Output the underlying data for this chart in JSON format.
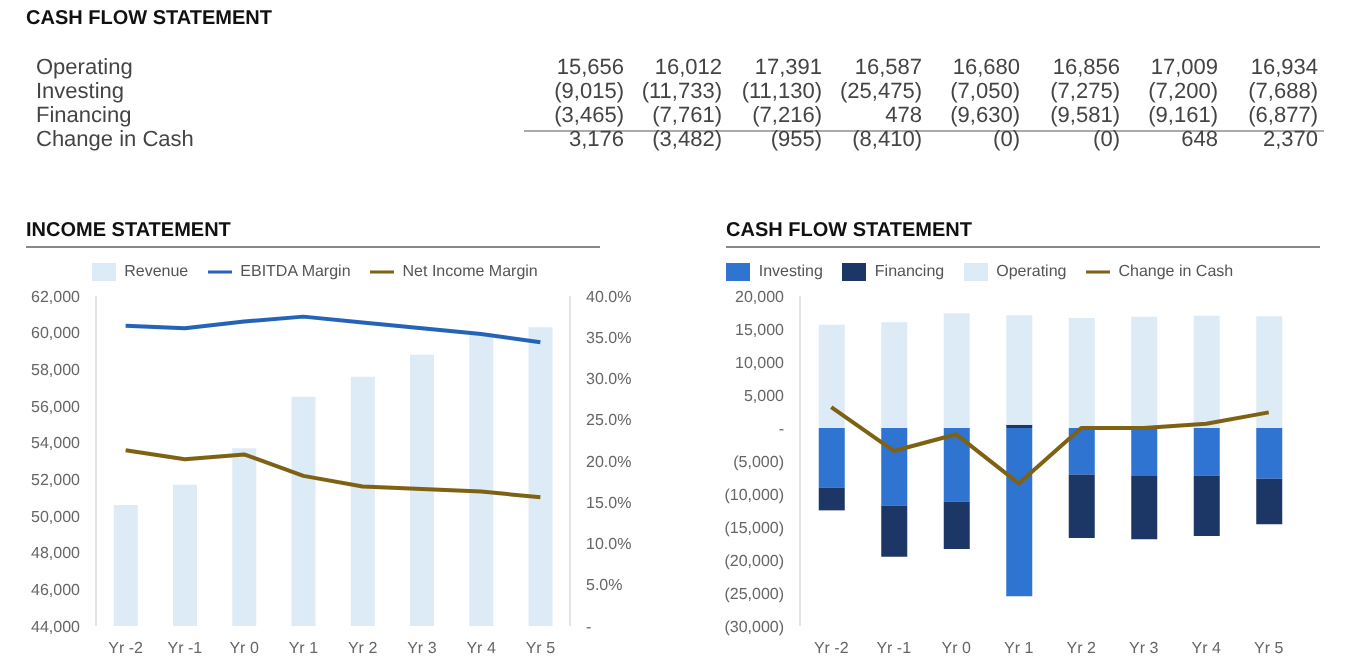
{
  "chart_data": [
    {
      "type": "other",
      "title": "CASH FLOW STATEMENT",
      "annotations": [
        "Operating",
        "15,656",
        "16,012",
        "17,391",
        "16,587",
        "16,680",
        "16,856",
        "17,009",
        "16,934",
        "Investing",
        "(9,015)",
        "(11,733)",
        "(11,130)",
        "(25,475)",
        "(7,050)",
        "(7,275)",
        "(7,200)",
        "(7,688)",
        "Financing",
        "(3,465)",
        "(7,761)",
        "(7,216)",
        "478",
        "(9,630)",
        "(9,581)",
        "(9,161)",
        "(6,877)",
        "Change in Cash",
        "3,176",
        "(3,482)",
        "(955)",
        "(8,410)",
        "(0)",
        "(0)",
        "648",
        "2,370"
      ]
    },
    {
      "type": "bar",
      "title": "INCOME STATEMENT",
      "categories": [
        "Yr -2",
        "Yr -1",
        "Yr 0",
        "Yr 1",
        "Yr 2",
        "Yr 3",
        "Yr 4",
        "Yr 5"
      ],
      "series": [
        {
          "name": "Revenue",
          "type": "bar",
          "color": "#ddebf7",
          "values": [
            50600,
            51700,
            53700,
            56500,
            57600,
            58800,
            59900,
            60300
          ]
        },
        {
          "name": "EBITDA Margin",
          "type": "line",
          "axis": "y2",
          "color": "#2563b8",
          "values": [
            36.4,
            36.1,
            36.9,
            37.5,
            36.8,
            36.1,
            35.4,
            34.4
          ]
        },
        {
          "name": "Net Income Margin",
          "type": "line",
          "axis": "y2",
          "color": "#7f6114",
          "values": [
            21.3,
            20.2,
            20.8,
            18.2,
            16.9,
            16.6,
            16.3,
            15.6
          ]
        }
      ],
      "ylim": [
        44000,
        62000
      ],
      "yticks": [
        {
          "value": 44000,
          "label": "44,000"
        },
        {
          "value": 46000,
          "label": "46,000"
        },
        {
          "value": 48000,
          "label": "48,000"
        },
        {
          "value": 50000,
          "label": "50,000"
        },
        {
          "value": 52000,
          "label": "52,000"
        },
        {
          "value": 54000,
          "label": "54,000"
        },
        {
          "value": 56000,
          "label": "56,000"
        },
        {
          "value": 58000,
          "label": "58,000"
        },
        {
          "value": 60000,
          "label": "60,000"
        },
        {
          "value": 62000,
          "label": "62,000"
        }
      ],
      "y2lim": [
        0,
        40
      ],
      "y2ticks": [
        {
          "value": 0,
          "label": "-"
        },
        {
          "value": 5,
          "label": "5.0%"
        },
        {
          "value": 10,
          "label": "10.0%"
        },
        {
          "value": 15,
          "label": "15.0%"
        },
        {
          "value": 20,
          "label": "20.0%"
        },
        {
          "value": 25,
          "label": "25.0%"
        },
        {
          "value": 30,
          "label": "30.0%"
        },
        {
          "value": 35,
          "label": "35.0%"
        },
        {
          "value": 40,
          "label": "40.0%"
        }
      ],
      "legend": "top",
      "marker": "none"
    },
    {
      "type": "bar",
      "title": "CASH FLOW STATEMENT",
      "categories": [
        "Yr -2",
        "Yr -1",
        "Yr 0",
        "Yr 1",
        "Yr 2",
        "Yr 3",
        "Yr 4",
        "Yr 5"
      ],
      "stacked": true,
      "series": [
        {
          "name": "Investing",
          "type": "bar",
          "color": "#2f74d0",
          "values": [
            -9015,
            -11733,
            -11130,
            -25475,
            -7050,
            -7275,
            -7200,
            -7688
          ]
        },
        {
          "name": "Financing",
          "type": "bar",
          "color": "#1c3766",
          "values": [
            -3465,
            -7761,
            -7216,
            478,
            -9630,
            -9581,
            -9161,
            -6877
          ]
        },
        {
          "name": "Operating",
          "type": "bar",
          "color": "#ddebf7",
          "values": [
            15656,
            16012,
            17391,
            16587,
            16680,
            16856,
            17009,
            16934
          ]
        },
        {
          "name": "Change in Cash",
          "type": "line",
          "color": "#7f6114",
          "values": [
            3176,
            -3482,
            -955,
            -8410,
            0,
            0,
            648,
            2370
          ]
        }
      ],
      "ylim": [
        -30000,
        20000
      ],
      "yticks": [
        {
          "value": -30000,
          "label": "(30,000)"
        },
        {
          "value": -25000,
          "label": "(25,000)"
        },
        {
          "value": -20000,
          "label": "(20,000)"
        },
        {
          "value": -15000,
          "label": "(15,000)"
        },
        {
          "value": -10000,
          "label": "(10,000)"
        },
        {
          "value": -5000,
          "label": "(5,000)"
        },
        {
          "value": 0,
          "label": "-"
        },
        {
          "value": 5000,
          "label": "5,000"
        },
        {
          "value": 10000,
          "label": "10,000"
        },
        {
          "value": 15000,
          "label": "15,000"
        },
        {
          "value": 20000,
          "label": "20,000"
        }
      ],
      "legend": "top",
      "marker": "none"
    }
  ]
}
